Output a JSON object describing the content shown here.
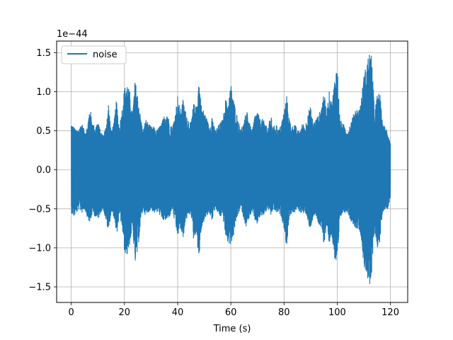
{
  "chart_data": {
    "type": "line",
    "title": "",
    "xlabel": "Time (s)",
    "ylabel": "",
    "y_offset_label": "1e−44",
    "xlim": [
      -5.5,
      126.5
    ],
    "ylim": [
      -1.7,
      1.65
    ],
    "x_ticks": [
      0,
      20,
      40,
      60,
      80,
      100,
      120
    ],
    "x_tick_labels": [
      "0",
      "20",
      "40",
      "60",
      "80",
      "100",
      "120"
    ],
    "y_ticks": [
      -1.5,
      -1.0,
      -0.5,
      0.0,
      0.5,
      1.0,
      1.5
    ],
    "y_tick_labels": [
      "−1.5",
      "−1.0",
      "−0.5",
      "0.0",
      "0.5",
      "1.0",
      "1.5"
    ],
    "grid": true,
    "legend_position": "top-left",
    "colors": {
      "series": "#1f77b4",
      "grid": "#b0b0b0",
      "axis": "#000000"
    },
    "series": [
      {
        "name": "noise",
        "x": [
          0,
          1,
          2,
          3,
          4,
          5,
          6,
          7,
          8,
          9,
          10,
          11,
          12,
          13,
          14,
          15,
          16,
          17,
          18,
          19,
          20,
          21,
          22,
          23,
          24,
          25,
          26,
          27,
          28,
          29,
          30,
          31,
          32,
          33,
          34,
          35,
          36,
          37,
          38,
          39,
          40,
          41,
          42,
          43,
          44,
          45,
          46,
          47,
          48,
          49,
          50,
          51,
          52,
          53,
          54,
          55,
          56,
          57,
          58,
          59,
          60,
          61,
          62,
          63,
          64,
          65,
          66,
          67,
          68,
          69,
          70,
          71,
          72,
          73,
          74,
          75,
          76,
          77,
          78,
          79,
          80,
          81,
          82,
          83,
          84,
          85,
          86,
          87,
          88,
          89,
          90,
          91,
          92,
          93,
          94,
          95,
          96,
          97,
          98,
          99,
          100,
          101,
          102,
          103,
          104,
          105,
          106,
          107,
          108,
          109,
          110,
          111,
          112,
          113,
          114,
          115,
          116,
          117,
          118,
          119,
          120
        ],
        "y_max": [
          0.6,
          0.55,
          0.5,
          0.55,
          0.6,
          0.5,
          0.55,
          0.8,
          0.6,
          0.55,
          0.62,
          0.5,
          0.45,
          0.55,
          0.85,
          0.5,
          0.6,
          0.9,
          0.55,
          0.75,
          1.05,
          1.1,
          1.0,
          0.7,
          1.15,
          0.95,
          0.7,
          0.5,
          0.65,
          0.6,
          0.55,
          0.55,
          0.5,
          0.55,
          0.6,
          0.7,
          0.75,
          0.6,
          0.55,
          0.7,
          0.95,
          0.75,
          0.9,
          0.75,
          0.65,
          0.6,
          0.85,
          0.8,
          1.15,
          0.8,
          0.75,
          0.65,
          0.55,
          0.7,
          0.5,
          0.55,
          0.6,
          0.65,
          0.9,
          0.85,
          1.1,
          0.9,
          0.75,
          0.6,
          0.55,
          0.6,
          0.8,
          0.6,
          0.5,
          0.7,
          0.75,
          0.65,
          0.65,
          0.6,
          0.55,
          0.7,
          0.55,
          0.6,
          0.5,
          0.6,
          0.75,
          0.95,
          0.65,
          0.55,
          0.6,
          0.5,
          0.5,
          0.6,
          0.55,
          0.75,
          0.8,
          0.6,
          0.65,
          0.7,
          0.8,
          1.0,
          0.75,
          1.0,
          0.85,
          1.15,
          1.35,
          0.65,
          0.6,
          0.55,
          0.5,
          0.6,
          0.7,
          0.8,
          0.75,
          0.9,
          1.2,
          1.35,
          1.5,
          1.45,
          0.75,
          0.95,
          1.0,
          0.6,
          0.55,
          0.5,
          0.35
        ],
        "y_min": [
          -0.55,
          -0.6,
          -0.55,
          -0.5,
          -0.55,
          -0.5,
          -0.6,
          -0.7,
          -0.55,
          -0.6,
          -0.65,
          -0.55,
          -0.5,
          -0.65,
          -0.8,
          -0.55,
          -0.6,
          -0.85,
          -0.6,
          -0.7,
          -1.05,
          -1.1,
          -0.95,
          -0.75,
          -1.2,
          -1.05,
          -0.7,
          -0.5,
          -0.6,
          -0.55,
          -0.5,
          -0.55,
          -0.55,
          -0.55,
          -0.65,
          -0.65,
          -0.65,
          -0.6,
          -0.5,
          -0.7,
          -0.85,
          -0.75,
          -0.9,
          -0.65,
          -0.6,
          -0.55,
          -0.9,
          -0.8,
          -1.15,
          -0.75,
          -0.65,
          -0.6,
          -0.55,
          -0.65,
          -0.5,
          -0.55,
          -0.6,
          -0.6,
          -0.85,
          -0.95,
          -0.95,
          -0.85,
          -0.65,
          -0.55,
          -0.5,
          -0.65,
          -0.75,
          -0.6,
          -0.55,
          -0.65,
          -0.7,
          -0.6,
          -0.6,
          -0.55,
          -0.5,
          -0.6,
          -0.5,
          -0.55,
          -0.55,
          -0.6,
          -0.75,
          -1.0,
          -0.6,
          -0.55,
          -0.55,
          -0.5,
          -0.55,
          -0.55,
          -0.55,
          -0.7,
          -0.75,
          -0.6,
          -0.6,
          -0.7,
          -0.75,
          -1.0,
          -0.7,
          -0.95,
          -0.85,
          -1.15,
          -1.3,
          -0.65,
          -0.55,
          -0.55,
          -0.55,
          -0.65,
          -0.7,
          -0.75,
          -0.75,
          -0.85,
          -1.25,
          -1.3,
          -1.55,
          -1.35,
          -0.75,
          -1.0,
          -0.95,
          -0.55,
          -0.5,
          -0.5,
          -0.35
        ]
      }
    ]
  }
}
